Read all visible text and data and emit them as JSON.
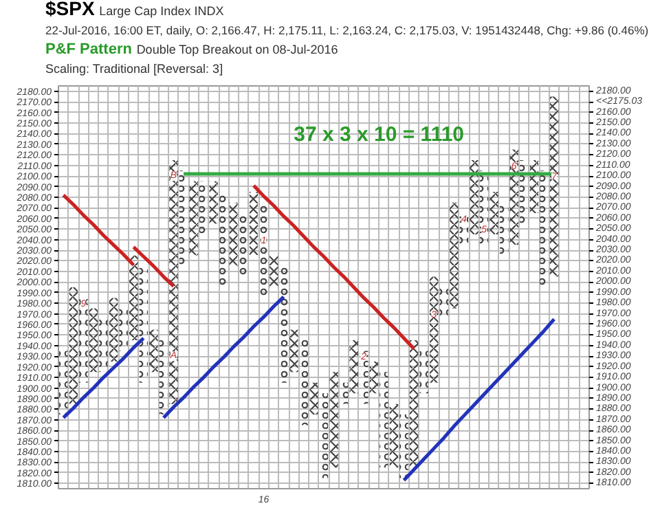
{
  "chart_data": {
    "type": "bar",
    "title": "$SPX",
    "subtitle": "Large Cap Index INDX",
    "annotations": [
      "22-Jul-2016, 16:00 ET, daily, O: 2,166.47, H: 2,175.11, L: 2,163.24, C: 2,175.03, V: 1951432448, Chg: +9.86 (0.46%)",
      "P&F Pattern",
      "Double Top Breakout on 08-Jul-2016",
      "Scaling: Traditional [Reversal: 3]",
      "37 x 3 x 10 = 1110",
      {
        "text": "9",
        "y": 1980
      },
      {
        "text": "A",
        "y": 1930
      },
      {
        "text": "B",
        "y": 2100
      },
      {
        "text": "1",
        "y": 2040
      },
      {
        "text": "2",
        "y": 1930
      },
      {
        "text": "3",
        "y": 1970
      },
      {
        "text": "4",
        "y": 2060
      },
      {
        "text": "5",
        "y": 2050
      },
      {
        "text": "6",
        "y": 2110
      },
      {
        "text": "7",
        "y": 2100
      }
    ],
    "categories": [
      null,
      null,
      null,
      null,
      null,
      null,
      null,
      null,
      null,
      null,
      null,
      null,
      null,
      null,
      null,
      null,
      null,
      null,
      null,
      null,
      "16",
      null,
      null,
      null,
      null,
      null,
      null,
      null,
      null,
      null,
      null,
      null,
      null,
      null,
      null,
      null,
      null,
      null,
      null,
      null,
      null,
      null,
      null,
      null,
      null,
      null,
      null,
      null,
      null,
      null
    ],
    "series": [
      {
        "marker": "cross",
        "color": "#444444",
        "values": [
          null,
          110,
          null,
          60,
          null,
          60,
          null,
          80,
          null,
          40,
          null,
          230,
          null,
          70,
          null,
          40,
          null,
          60,
          null,
          60,
          null,
          30,
          null,
          40,
          null,
          30,
          null,
          90,
          null,
          50,
          null,
          30,
          null,
          60,
          null,
          120,
          null,
          100,
          null,
          100,
          null,
          70,
          null,
          40,
          null,
          90,
          null,
          50,
          null,
          170
        ],
        "base": [
          null,
          1885,
          null,
          1915,
          null,
          1925,
          null,
          1945,
          null,
          1915,
          null,
          1885,
          null,
          2025,
          null,
          2055,
          null,
          2015,
          null,
          2025,
          null,
          1995,
          null,
          1915,
          null,
          1875,
          null,
          1825,
          null,
          1895,
          null,
          1895,
          null,
          1825,
          null,
          1825,
          null,
          1905,
          null,
          1975,
          null,
          2045,
          null,
          2045,
          null,
          2035,
          null,
          2065,
          null,
          2005
        ]
      },
      {
        "marker": "circle",
        "color": "#444444",
        "values": [
          60,
          null,
          80,
          null,
          50,
          null,
          40,
          null,
          110,
          null,
          70,
          null,
          90,
          null,
          50,
          null,
          90,
          null,
          60,
          null,
          90,
          null,
          110,
          null,
          80,
          null,
          80,
          null,
          20,
          null,
          50,
          null,
          90,
          null,
          60,
          null,
          40,
          null,
          30,
          null,
          30,
          null,
          70,
          null,
          50,
          null,
          60,
          null,
          110,
          null
        ],
        "base": [
          1875,
          null,
          1905,
          null,
          1915,
          null,
          1935,
          null,
          1905,
          null,
          1875,
          null,
          2015,
          null,
          2045,
          null,
          1995,
          null,
          2005,
          null,
          1985,
          null,
          1905,
          null,
          1865,
          null,
          1815,
          null,
          1885,
          null,
          1885,
          null,
          1825,
          null,
          1815,
          null,
          1895,
          null,
          1965,
          null,
          2035,
          null,
          2035,
          null,
          2025,
          null,
          2055,
          null,
          1995,
          null
        ]
      },
      {
        "type": "line",
        "color": "#cc2222",
        "values": [
          2082,
          2073,
          2063,
          2054,
          2044,
          2035,
          2026,
          2016,
          null,
          null,
          null,
          null,
          null,
          null,
          null,
          null,
          null,
          null,
          null,
          null,
          null,
          null,
          null,
          null,
          null,
          null,
          null,
          null,
          null,
          null,
          null,
          null,
          null,
          null,
          null,
          null,
          null,
          null,
          null,
          null,
          null,
          null,
          null,
          null,
          null,
          null,
          null,
          null,
          null,
          null
        ]
      },
      {
        "type": "line",
        "color": "#cc2222",
        "values": [
          null,
          null,
          null,
          null,
          null,
          null,
          null,
          2033,
          2024,
          2015,
          2005,
          1996,
          null,
          null,
          null,
          null,
          null,
          null,
          null,
          null,
          null,
          null,
          null,
          null,
          null,
          null,
          null,
          null,
          null,
          null,
          null,
          null,
          null,
          null,
          null,
          null,
          null,
          null,
          null,
          null,
          null,
          null,
          null,
          null,
          null,
          null,
          null,
          null,
          null,
          null
        ]
      },
      {
        "type": "line",
        "color": "#cc2222",
        "values": [
          null,
          null,
          null,
          null,
          null,
          null,
          null,
          null,
          null,
          null,
          null,
          null,
          null,
          null,
          null,
          null,
          null,
          null,
          null,
          2091,
          2081,
          2072,
          2062,
          2053,
          2043,
          2033,
          2024,
          2014,
          2005,
          1995,
          1985,
          1976,
          1966,
          1957,
          1947,
          1937,
          null,
          null,
          null,
          null,
          null,
          null,
          null,
          null,
          null,
          null,
          null,
          null,
          null,
          null
        ]
      },
      {
        "type": "line",
        "color": "#2233bb",
        "values": [
          1872,
          1881,
          1891,
          1900,
          1910,
          1919,
          1928,
          1938,
          1947,
          null,
          null,
          null,
          null,
          null,
          null,
          null,
          null,
          null,
          null,
          null,
          null,
          null,
          null,
          null,
          null,
          null,
          null,
          null,
          null,
          null,
          null,
          null,
          null,
          null,
          null,
          null,
          null,
          null,
          null,
          null,
          null,
          null,
          null,
          null,
          null,
          null,
          null,
          null,
          null,
          null
        ]
      },
      {
        "type": "line",
        "color": "#2233bb",
        "values": [
          null,
          null,
          null,
          null,
          null,
          null,
          null,
          null,
          null,
          null,
          1872,
          1882,
          1891,
          1901,
          1910,
          1920,
          1929,
          1939,
          1948,
          1958,
          1967,
          1977,
          1986,
          null,
          null,
          null,
          null,
          null,
          null,
          null,
          null,
          null,
          null,
          null,
          null,
          null,
          null,
          null,
          null,
          null,
          null,
          null,
          null,
          null,
          null,
          null,
          null,
          null,
          null,
          null
        ]
      },
      {
        "type": "line",
        "color": "#2233bb",
        "values": [
          null,
          null,
          null,
          null,
          null,
          null,
          null,
          null,
          null,
          null,
          null,
          null,
          null,
          null,
          null,
          null,
          null,
          null,
          null,
          null,
          null,
          null,
          null,
          null,
          null,
          null,
          null,
          null,
          null,
          null,
          null,
          null,
          null,
          null,
          1813,
          1823,
          1833,
          1843,
          1853,
          1864,
          1874,
          1884,
          1894,
          1904,
          1914,
          1924,
          1934,
          1944,
          1954,
          1965
        ]
      },
      {
        "type": "line",
        "color": "#33aa44",
        "values": [
          null,
          null,
          null,
          null,
          null,
          null,
          null,
          null,
          null,
          null,
          null,
          null,
          2102,
          2102,
          2102,
          2102,
          2102,
          2102,
          2102,
          2102,
          2102,
          2102,
          2102,
          2102,
          2102,
          2102,
          2102,
          2102,
          2102,
          2102,
          2102,
          2102,
          2102,
          2102,
          2102,
          2102,
          2102,
          2102,
          2102,
          2102,
          2102,
          2102,
          2102,
          2102,
          2102,
          2102,
          2102,
          2102,
          2102,
          2102
        ]
      }
    ],
    "ylim": [
      1805,
      2185
    ],
    "yticks": [
      {
        "value": 1810,
        "label": "1810.00"
      },
      {
        "value": 1820,
        "label": "1820.00"
      },
      {
        "value": 1830,
        "label": "1830.00"
      },
      {
        "value": 1840,
        "label": "1840.00"
      },
      {
        "value": 1850,
        "label": "1850.00"
      },
      {
        "value": 1860,
        "label": "1860.00"
      },
      {
        "value": 1870,
        "label": "1870.00"
      },
      {
        "value": 1880,
        "label": "1880.00"
      },
      {
        "value": 1890,
        "label": "1890.00"
      },
      {
        "value": 1900,
        "label": "1900.00"
      },
      {
        "value": 1910,
        "label": "1910.00"
      },
      {
        "value": 1920,
        "label": "1920.00"
      },
      {
        "value": 1930,
        "label": "1930.00"
      },
      {
        "value": 1940,
        "label": "1940.00"
      },
      {
        "value": 1950,
        "label": "1950.00"
      },
      {
        "value": 1960,
        "label": "1960.00"
      },
      {
        "value": 1970,
        "label": "1970.00"
      },
      {
        "value": 1980,
        "label": "1980.00"
      },
      {
        "value": 1990,
        "label": "1990.00"
      },
      {
        "value": 2000,
        "label": "2000.00"
      },
      {
        "value": 2010,
        "label": "2010.00"
      },
      {
        "value": 2020,
        "label": "2020.00"
      },
      {
        "value": 2030,
        "label": "2030.00"
      },
      {
        "value": 2040,
        "label": "2040.00"
      },
      {
        "value": 2050,
        "label": "2050.00"
      },
      {
        "value": 2060,
        "label": "2060.00"
      },
      {
        "value": 2070,
        "label": "2070.00"
      },
      {
        "value": 2080,
        "label": "2080.00"
      },
      {
        "value": 2090,
        "label": "2090.00"
      },
      {
        "value": 2100,
        "label": "2100.00"
      },
      {
        "value": 2110,
        "label": "2110.00"
      },
      {
        "value": 2120,
        "label": "2120.00"
      },
      {
        "value": 2130,
        "label": "2130.00"
      },
      {
        "value": 2140,
        "label": "2140.00"
      },
      {
        "value": 2150,
        "label": "2150.00"
      },
      {
        "value": 2160,
        "label": "2160.00"
      },
      {
        "value": 2170,
        "label": "2170.00"
      },
      {
        "value": 2180,
        "label": "2180.00"
      }
    ],
    "y2lim": [
      1805,
      2185
    ],
    "y2ticks": [
      {
        "value": 1810,
        "label": "1810.00"
      },
      {
        "value": 1820,
        "label": "1820.00"
      },
      {
        "value": 1830,
        "label": "1830.00"
      },
      {
        "value": 1840,
        "label": "1840.00"
      },
      {
        "value": 1850,
        "label": "1850.00"
      },
      {
        "value": 1860,
        "label": "1860.00"
      },
      {
        "value": 1870,
        "label": "1870.00"
      },
      {
        "value": 1880,
        "label": "1880.00"
      },
      {
        "value": 1890,
        "label": "1890.00"
      },
      {
        "value": 1900,
        "label": "1900.00"
      },
      {
        "value": 1910,
        "label": "1910.00"
      },
      {
        "value": 1920,
        "label": "1920.00"
      },
      {
        "value": 1930,
        "label": "1930.00"
      },
      {
        "value": 1940,
        "label": "1940.00"
      },
      {
        "value": 1950,
        "label": "1950.00"
      },
      {
        "value": 1960,
        "label": "1960.00"
      },
      {
        "value": 1970,
        "label": "1970.00"
      },
      {
        "value": 1980,
        "label": "1980.00"
      },
      {
        "value": 1990,
        "label": "1990.00"
      },
      {
        "value": 2000,
        "label": "2000.00"
      },
      {
        "value": 2010,
        "label": "2010.00"
      },
      {
        "value": 2020,
        "label": "2020.00"
      },
      {
        "value": 2030,
        "label": "2030.00"
      },
      {
        "value": 2040,
        "label": "2040.00"
      },
      {
        "value": 2050,
        "label": "2050.00"
      },
      {
        "value": 2060,
        "label": "2060.00"
      },
      {
        "value": 2070,
        "label": "2070.00"
      },
      {
        "value": 2080,
        "label": "2080.00"
      },
      {
        "value": 2090,
        "label": "2090.00"
      },
      {
        "value": 2100,
        "label": "2100.00"
      },
      {
        "value": 2110,
        "label": "2110.00"
      },
      {
        "value": 2120,
        "label": "2120.00"
      },
      {
        "value": 2130,
        "label": "2130.00"
      },
      {
        "value": 2140,
        "label": "2140.00"
      },
      {
        "value": 2150,
        "label": "2150.00"
      },
      {
        "value": 2160,
        "label": "2160.00"
      },
      {
        "value": 2170,
        "label": "<<2175.03"
      },
      {
        "value": 2180,
        "label": "2180.00"
      }
    ],
    "grid": true
  }
}
